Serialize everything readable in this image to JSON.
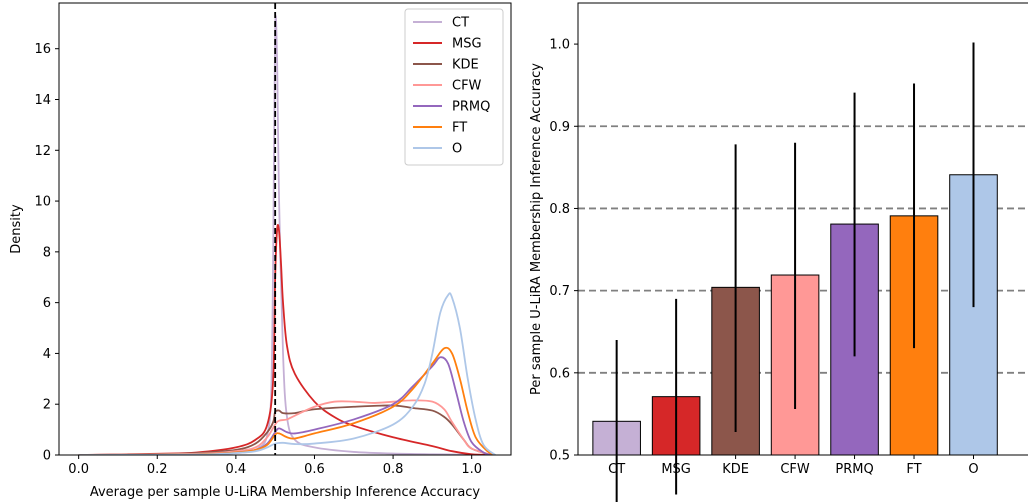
{
  "chart_data": [
    {
      "type": "line",
      "title": "",
      "xlabel": "Average per sample U-LiRA Membership Inference Accuracy",
      "ylabel": "Density",
      "xlim": [
        -0.05,
        1.1
      ],
      "ylim": [
        0,
        17.8
      ],
      "xticks": [
        0.0,
        0.2,
        0.4,
        0.6,
        0.8,
        1.0
      ],
      "xtick_labels": [
        "0.0",
        "0.2",
        "0.4",
        "0.6",
        "0.8",
        "1.0"
      ],
      "yticks": [
        0,
        2,
        4,
        6,
        8,
        10,
        12,
        14,
        16
      ],
      "ytick_labels": [
        "0",
        "2",
        "4",
        "6",
        "8",
        "10",
        "12",
        "14",
        "16"
      ],
      "grid": false,
      "legend_position": "top-right",
      "vline": {
        "x": 0.5,
        "style": "dashed",
        "color": "#000000"
      },
      "series": [
        {
          "name": "CT",
          "color": "#c5b0d5",
          "x": [
            0.0,
            0.3,
            0.42,
            0.46,
            0.48,
            0.49,
            0.495,
            0.5,
            0.505,
            0.51,
            0.52,
            0.53,
            0.55,
            0.6,
            0.7,
            0.8,
            0.9,
            0.95,
            1.0,
            1.05
          ],
          "y": [
            0.0,
            0.03,
            0.1,
            0.3,
            0.8,
            2.5,
            8.0,
            16.8,
            15.5,
            10.0,
            4.0,
            1.5,
            0.6,
            0.3,
            0.12,
            0.06,
            0.03,
            0.02,
            0.01,
            0.0
          ]
        },
        {
          "name": "MSG",
          "color": "#d62728",
          "x": [
            0.0,
            0.2,
            0.3,
            0.4,
            0.45,
            0.48,
            0.495,
            0.5,
            0.505,
            0.51,
            0.515,
            0.52,
            0.53,
            0.55,
            0.6,
            0.65,
            0.7,
            0.8,
            0.9,
            0.95,
            1.0,
            1.05
          ],
          "y": [
            0.0,
            0.05,
            0.1,
            0.3,
            0.6,
            1.2,
            3.0,
            7.0,
            8.9,
            8.8,
            7.5,
            6.0,
            4.3,
            3.2,
            2.1,
            1.5,
            1.15,
            0.7,
            0.35,
            0.15,
            0.03,
            0.0
          ]
        },
        {
          "name": "KDE",
          "color": "#8c564b",
          "x": [
            0.0,
            0.2,
            0.3,
            0.4,
            0.45,
            0.48,
            0.495,
            0.5,
            0.51,
            0.52,
            0.55,
            0.6,
            0.7,
            0.8,
            0.85,
            0.9,
            0.93,
            0.95,
            0.98,
            1.0,
            1.05
          ],
          "y": [
            0.0,
            0.03,
            0.08,
            0.2,
            0.45,
            0.9,
            1.3,
            1.7,
            1.75,
            1.65,
            1.65,
            1.8,
            1.9,
            1.95,
            1.85,
            1.75,
            1.5,
            1.2,
            0.6,
            0.25,
            0.0
          ]
        },
        {
          "name": "CFW",
          "color": "#ff9896",
          "x": [
            0.0,
            0.3,
            0.4,
            0.45,
            0.48,
            0.5,
            0.51,
            0.53,
            0.55,
            0.6,
            0.65,
            0.7,
            0.75,
            0.8,
            0.85,
            0.9,
            0.93,
            0.95,
            0.98,
            1.0,
            1.05
          ],
          "y": [
            0.0,
            0.05,
            0.15,
            0.3,
            0.7,
            1.2,
            1.35,
            1.4,
            1.55,
            1.9,
            2.1,
            2.1,
            2.05,
            2.1,
            2.15,
            2.1,
            1.8,
            1.3,
            0.6,
            0.25,
            0.0
          ]
        },
        {
          "name": "PRMQ",
          "color": "#9467bd",
          "x": [
            0.0,
            0.3,
            0.4,
            0.45,
            0.48,
            0.5,
            0.51,
            0.53,
            0.55,
            0.6,
            0.7,
            0.8,
            0.85,
            0.9,
            0.92,
            0.94,
            0.96,
            0.98,
            1.0,
            1.03,
            1.05
          ],
          "y": [
            0.0,
            0.03,
            0.1,
            0.2,
            0.45,
            0.9,
            1.05,
            0.9,
            0.85,
            1.0,
            1.4,
            2.0,
            2.7,
            3.5,
            3.85,
            3.6,
            2.5,
            1.3,
            0.5,
            0.1,
            0.0
          ]
        },
        {
          "name": "FT",
          "color": "#ff7f0e",
          "x": [
            0.0,
            0.3,
            0.4,
            0.45,
            0.48,
            0.5,
            0.51,
            0.53,
            0.55,
            0.6,
            0.7,
            0.8,
            0.85,
            0.9,
            0.93,
            0.95,
            0.97,
            0.99,
            1.01,
            1.04,
            1.06
          ],
          "y": [
            0.0,
            0.03,
            0.1,
            0.2,
            0.4,
            0.8,
            0.85,
            0.7,
            0.65,
            0.85,
            1.25,
            1.9,
            2.6,
            3.6,
            4.2,
            4.0,
            3.0,
            1.7,
            0.7,
            0.15,
            0.0
          ]
        },
        {
          "name": "O",
          "color": "#aec7e8",
          "x": [
            0.0,
            0.3,
            0.4,
            0.45,
            0.48,
            0.5,
            0.52,
            0.55,
            0.6,
            0.7,
            0.8,
            0.85,
            0.88,
            0.9,
            0.92,
            0.94,
            0.95,
            0.97,
            0.99,
            1.01,
            1.03,
            1.06
          ],
          "y": [
            0.0,
            0.02,
            0.08,
            0.15,
            0.3,
            0.45,
            0.48,
            0.43,
            0.45,
            0.65,
            1.2,
            1.9,
            2.8,
            4.0,
            5.6,
            6.3,
            6.2,
            5.0,
            3.0,
            1.4,
            0.4,
            0.0
          ]
        }
      ]
    },
    {
      "type": "bar",
      "title": "",
      "xlabel": "",
      "ylabel": "Per sample U-LiRA Membership Inference Accuracy",
      "ylim": [
        0.5,
        1.05
      ],
      "yticks": [
        0.5,
        0.6,
        0.7,
        0.8,
        0.9,
        1.0
      ],
      "ytick_labels": [
        "0.5",
        "0.6",
        "0.7",
        "0.8",
        "0.9",
        "1.0"
      ],
      "grid": false,
      "hlines": [
        0.6,
        0.7,
        0.8,
        0.9
      ],
      "hline_style": {
        "color": "#808080",
        "style": "dashed"
      },
      "categories": [
        "CT",
        "MSG",
        "KDE",
        "CFW",
        "PRMQ",
        "FT",
        "O"
      ],
      "values": [
        0.541,
        0.571,
        0.704,
        0.719,
        0.781,
        0.791,
        0.841
      ],
      "error_low": [
        0.442,
        0.452,
        0.528,
        0.556,
        0.62,
        0.63,
        0.68
      ],
      "error_high": [
        0.64,
        0.69,
        0.878,
        0.88,
        0.941,
        0.952,
        1.002
      ],
      "colors": [
        "#c5b0d5",
        "#d62728",
        "#8c564b",
        "#ff9896",
        "#9467bd",
        "#ff7f0e",
        "#aec7e8"
      ]
    }
  ]
}
